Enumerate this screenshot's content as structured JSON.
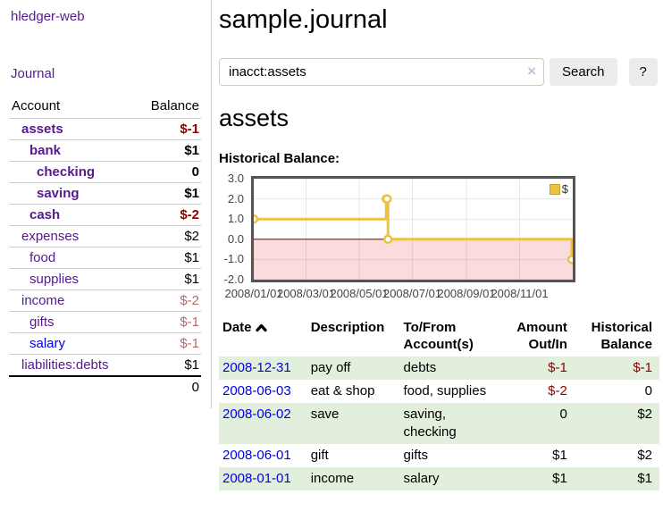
{
  "sidebar": {
    "app_title": "hledger-web",
    "journal_link": "Journal",
    "accounts_table": {
      "headers": {
        "account": "Account",
        "balance": "Balance"
      },
      "rows": [
        {
          "label": "assets",
          "label_class": "lvl1 strong",
          "value": "$-1",
          "value_class": "neg strong"
        },
        {
          "label": "bank",
          "label_class": "lvl2 strong",
          "value": "$1",
          "value_class": "strong"
        },
        {
          "label": "checking",
          "label_class": "lvl3 strong",
          "value": "0",
          "value_class": "strong"
        },
        {
          "label": "saving",
          "label_class": "lvl3 strong",
          "value": "$1",
          "value_class": "strong"
        },
        {
          "label": "cash",
          "label_class": "lvl2 strong",
          "value": "$-2",
          "value_class": "neg strong"
        },
        {
          "label": "expenses",
          "label_class": "lvl1",
          "value": "$2",
          "value_class": ""
        },
        {
          "label": "food",
          "label_class": "lvl2",
          "value": "$1",
          "value_class": ""
        },
        {
          "label": "supplies",
          "label_class": "lvl2",
          "value": "$1",
          "value_class": ""
        },
        {
          "label": "income",
          "label_class": "lvl1",
          "value": "$-2",
          "value_class": "dim-neg"
        },
        {
          "label": "gifts",
          "label_class": "lvl2",
          "value": "$-1",
          "value_class": "dim-neg"
        },
        {
          "label": "salary",
          "label_class": "lvl2 blue",
          "value": "$-1",
          "value_class": "dim-neg"
        },
        {
          "label": "liabilities:debts",
          "label_class": "lvl1",
          "value": "$1",
          "value_class": ""
        }
      ],
      "total": "0"
    }
  },
  "main": {
    "title": "sample.journal",
    "search": {
      "value": "inacct:assets",
      "clear_icon": "×",
      "search_button": "Search",
      "help_button": "?"
    },
    "account_heading": "assets",
    "chart_label": "Historical Balance:",
    "register_table": {
      "headers": {
        "date": "Date",
        "description": "Description",
        "tofrom": "To/From Account(s)",
        "amount": "Amount Out/In",
        "historical": "Historical Balance"
      },
      "sort": "date ascending",
      "rows": [
        {
          "date": "2008-12-31",
          "description": "pay off",
          "accounts": "debts",
          "amount": "$-1",
          "amount_class": "neg",
          "balance": "$-1",
          "balance_class": "neg"
        },
        {
          "date": "2008-06-03",
          "description": "eat & shop",
          "accounts": "food, supplies",
          "amount": "$-2",
          "amount_class": "neg",
          "balance": "0",
          "balance_class": ""
        },
        {
          "date": "2008-06-02",
          "description": "save",
          "accounts": "saving,\nchecking",
          "amount": "0",
          "amount_class": "",
          "balance": "$2",
          "balance_class": ""
        },
        {
          "date": "2008-06-01",
          "description": "gift",
          "accounts": "gifts",
          "amount": "$1",
          "amount_class": "",
          "balance": "$2",
          "balance_class": ""
        },
        {
          "date": "2008-01-01",
          "description": "income",
          "accounts": "salary",
          "amount": "$1",
          "amount_class": "",
          "balance": "$1",
          "balance_class": ""
        }
      ]
    }
  },
  "chart_data": {
    "type": "line",
    "title": "Historical Balance",
    "step": true,
    "legend": "$",
    "legend_position": "top-right",
    "series": [
      {
        "name": "$",
        "color": "#edc240",
        "points": [
          {
            "date": "2008-01-01",
            "value": 1
          },
          {
            "date": "2008-06-01",
            "value": 2
          },
          {
            "date": "2008-06-02",
            "value": 2
          },
          {
            "date": "2008-06-03",
            "value": 0
          },
          {
            "date": "2008-12-31",
            "value": -1
          }
        ]
      }
    ],
    "x_range": [
      "2008-01-01",
      "2009-01-01"
    ],
    "y_range": [
      -2,
      3
    ],
    "y_ticks": [
      3,
      2,
      1,
      0,
      -1,
      -2
    ],
    "y_tick_labels": [
      "3.0",
      "2.0",
      "1.0",
      "0.0",
      "-1.0",
      "-2.0"
    ],
    "x_ticks": [
      {
        "date": "2008-01-01",
        "label": "2008/01/01"
      },
      {
        "date": "2008-03-01",
        "label": "2008/03/01"
      },
      {
        "date": "2008-05-01",
        "label": "2008/05/01"
      },
      {
        "date": "2008-07-01",
        "label": "2008/07/01"
      },
      {
        "date": "2008-09-01",
        "label": "2008/09/01"
      },
      {
        "date": "2008-11-01",
        "label": "2008/11/01"
      }
    ],
    "grid": true,
    "grid_color": "rgba(0,0,0,0.09)",
    "zero_line_color": "#8b0000",
    "negative_region_fill": "#fbdcdc",
    "marker": {
      "fill": "#ffffff",
      "radius": 4
    }
  }
}
